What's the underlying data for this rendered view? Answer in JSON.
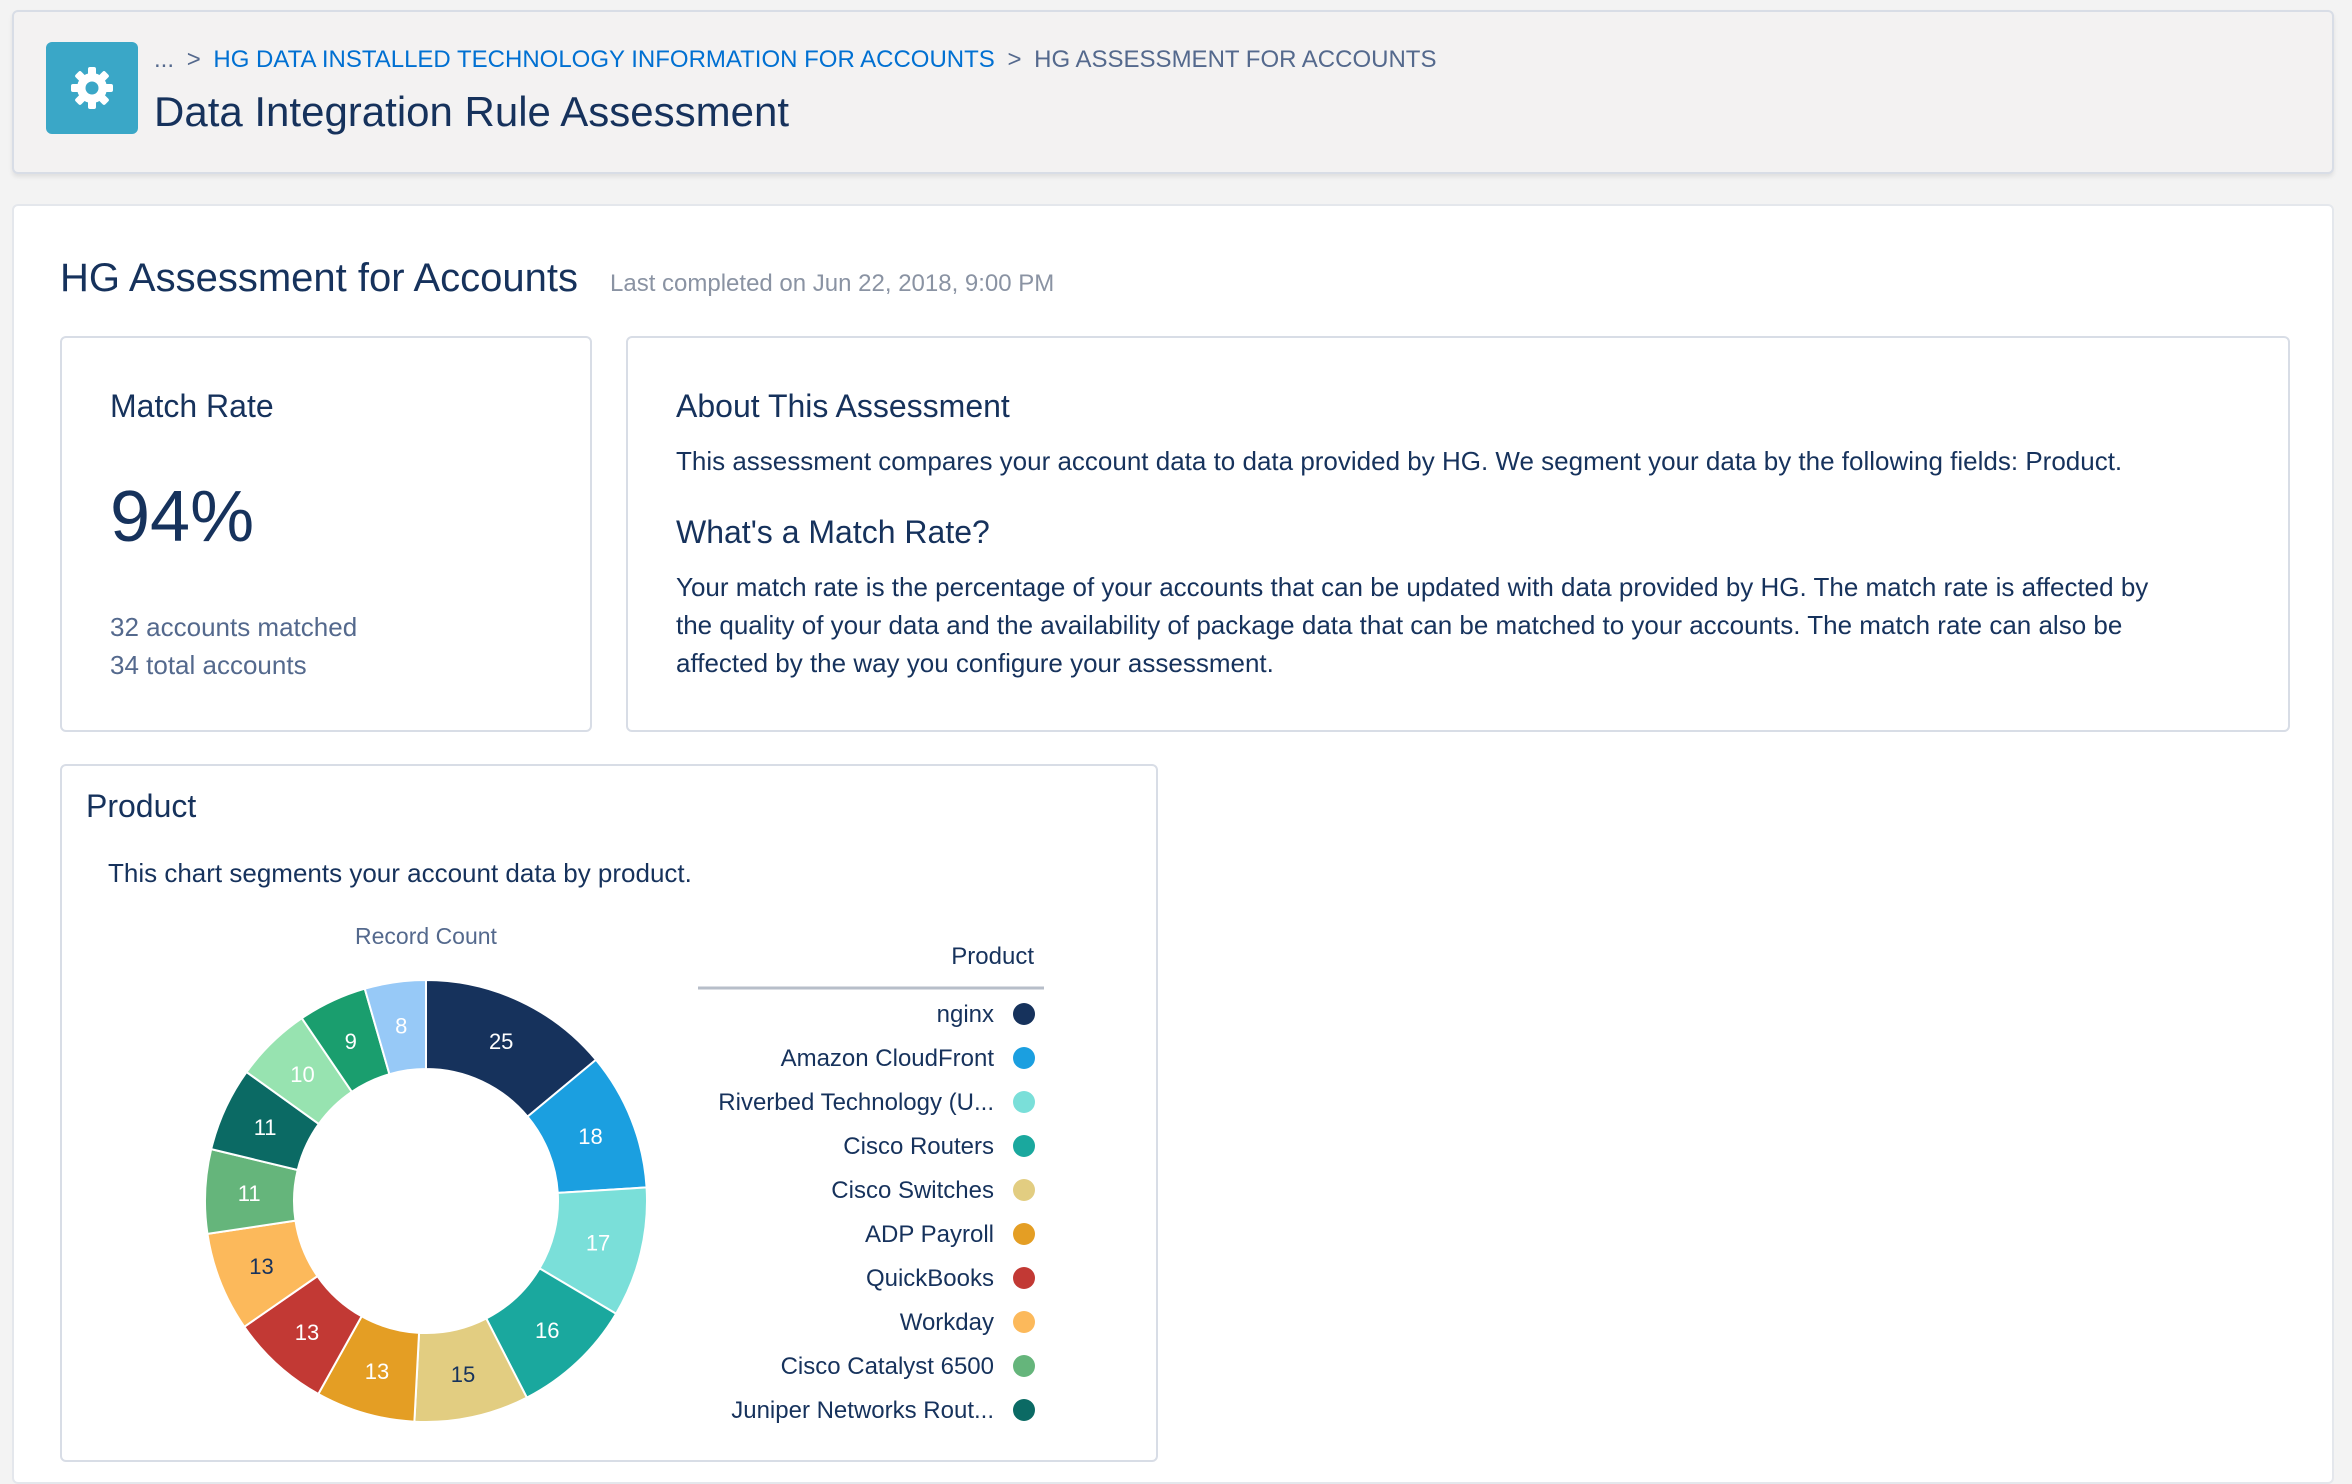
{
  "header": {
    "breadcrumb": {
      "ellipsis": "...",
      "separator": ">",
      "link": "HG DATA INSTALLED TECHNOLOGY INFORMATION FOR ACCOUNTS",
      "current": "HG ASSESSMENT FOR ACCOUNTS"
    },
    "title": "Data Integration Rule Assessment",
    "icon": "gear-icon"
  },
  "assessment": {
    "title": "HG Assessment for Accounts",
    "last_completed": "Last completed on Jun 22, 2018, 9:00 PM"
  },
  "match_rate": {
    "title": "Match Rate",
    "value": "94%",
    "matched": "32 accounts matched",
    "total": "34 total accounts"
  },
  "about": {
    "title": "About This Assessment",
    "description": "This assessment compares your account data to data provided by HG. We segment your data by the following fields: Product.",
    "match_rate_title": "What's a Match Rate?",
    "match_rate_lines": [
      "Your match rate is the percentage of your accounts that can be updated with data provided by HG. The match rate is affected by",
      "the quality of your data and the availability of package data that can be matched to your accounts. The match rate can also be",
      "affected by the way you configure your assessment."
    ]
  },
  "product": {
    "title": "Product",
    "description": "This chart segments your account data by product."
  },
  "chart_data": {
    "type": "pie",
    "variant": "donut",
    "title": "Record Count",
    "legend_title": "Product",
    "legend_position": "right",
    "categories": [
      "nginx",
      "Amazon CloudFront",
      "Riverbed Technology (U...",
      "Cisco Routers",
      "Cisco Switches",
      "ADP Payroll",
      "QuickBooks",
      "Workday",
      "Cisco Catalyst 6500",
      "Juniper Networks Rout...",
      "",
      "",
      ""
    ],
    "values": [
      25,
      18,
      17,
      16,
      15,
      13,
      13,
      13,
      11,
      11,
      10,
      9,
      8
    ],
    "colors": [
      "#16325c",
      "#1b9fe0",
      "#7adfd9",
      "#1aa89e",
      "#e2cd81",
      "#e49e24",
      "#c23934",
      "#fcb95b",
      "#65b57b",
      "#0b6a64",
      "#97e3b0",
      "#1a9e6e",
      "#97c9f7"
    ],
    "label_colors": [
      "#ffffff",
      "#ffffff",
      "#ffffff",
      "#ffffff",
      "#16325c",
      "#ffffff",
      "#ffffff",
      "#16325c",
      "#ffffff",
      "#ffffff",
      "#ffffff",
      "#ffffff",
      "#ffffff"
    ],
    "legend_count": 10
  }
}
